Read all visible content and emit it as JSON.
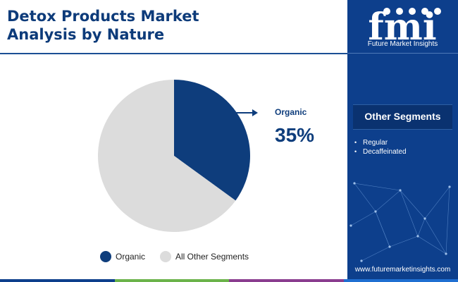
{
  "title_line1": "Detox Products Market",
  "title_line2": "Analysis by Nature",
  "brand": {
    "name": "Future Market Insights",
    "url": "www.futuremarketinsights.com",
    "logo_letters": "fmi"
  },
  "sidebar": {
    "heading": "Other Segments",
    "items": [
      "Regular",
      "Decaffeinated"
    ]
  },
  "colors": {
    "primary": "#0d3f8c",
    "organic": "#0e3d7c",
    "others": "#dcdcdc",
    "bottom_bar": [
      "#0d3f8c",
      "#6bb34a",
      "#8a3d8f",
      "#1f6fd1"
    ]
  },
  "chart_data": {
    "type": "pie",
    "title": "",
    "slices": [
      {
        "label": "Organic",
        "value": 35,
        "color": "#0e3d7c"
      },
      {
        "label": "All Other Segments",
        "value": 65,
        "color": "#dcdcdc"
      }
    ],
    "callout": {
      "label": "Organic",
      "value_text": "35%"
    },
    "legend": [
      "Organic",
      "All Other Segments"
    ],
    "legend_position": "bottom"
  }
}
